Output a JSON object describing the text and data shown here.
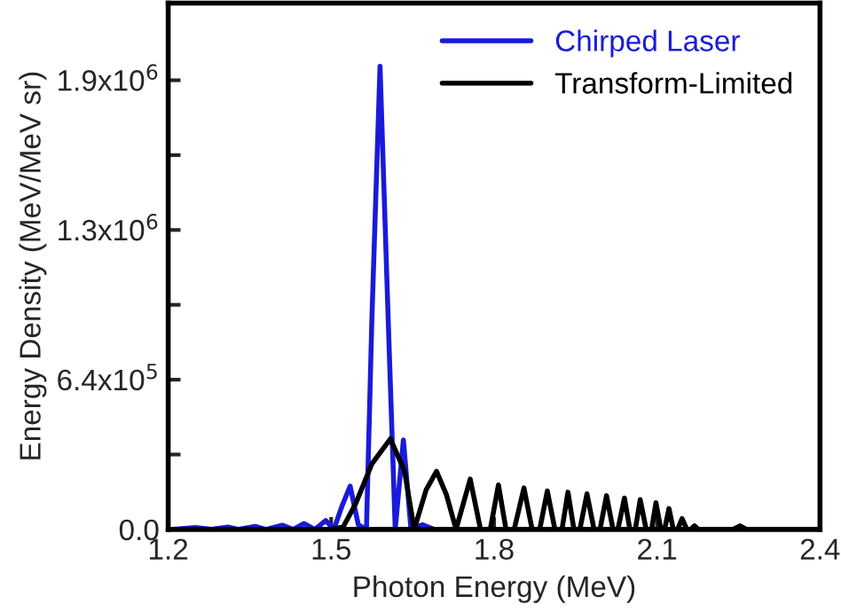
{
  "chart_data": {
    "type": "line",
    "xlabel": "Photon Energy (MeV)",
    "ylabel": "Energy Density (MeV/MeV sr)",
    "xlim": [
      1.2,
      2.4
    ],
    "xticks": [
      1.2,
      1.5,
      1.8,
      2.1,
      2.4
    ],
    "ylim": [
      0,
      2250000
    ],
    "yticks": [
      {
        "value": 0,
        "label": "0.0"
      },
      {
        "value": 320000,
        "label": null
      },
      {
        "value": 640000,
        "label": "6.4x10$^{5}$"
      },
      {
        "value": 960000,
        "label": null
      },
      {
        "value": 1280000,
        "label": "1.3x10$^{6}$"
      },
      {
        "value": 1600000,
        "label": null
      },
      {
        "value": 1920000,
        "label": "1.9x10$^{6}$"
      }
    ],
    "grid": false,
    "legend": "top right",
    "marker": "none",
    "line_style": "solid",
    "series": [
      {
        "name": "Chirped Laser",
        "color": "#1a1adb",
        "x": [
          1.21,
          1.25,
          1.28,
          1.31,
          1.33,
          1.36,
          1.38,
          1.41,
          1.43,
          1.45,
          1.47,
          1.49,
          1.505,
          1.52,
          1.535,
          1.55,
          1.565,
          1.575,
          1.59,
          1.605,
          1.618,
          1.633,
          1.647,
          1.668,
          1.69,
          1.72
        ],
        "values": [
          0,
          8000,
          0,
          10000,
          0,
          13000,
          0,
          18000,
          0,
          25000,
          0,
          38000,
          0,
          100000,
          185000,
          20000,
          0,
          900000,
          1980000,
          900000,
          0,
          382000,
          0,
          20000,
          0,
          0
        ]
      },
      {
        "name": "Transform-Limited",
        "color": "#000000",
        "x": [
          1.2,
          1.5,
          1.522,
          1.545,
          1.575,
          1.609,
          1.635,
          1.653,
          1.675,
          1.694,
          1.712,
          1.73,
          1.756,
          1.775,
          1.793,
          1.808,
          1.822,
          1.837,
          1.855,
          1.87,
          1.884,
          1.898,
          1.912,
          1.925,
          1.936,
          1.947,
          1.958,
          1.971,
          1.984,
          1.995,
          2.007,
          2.019,
          2.028,
          2.04,
          2.05,
          2.06,
          2.069,
          2.08,
          2.09,
          2.098,
          2.107,
          2.114,
          2.122,
          2.13,
          2.138,
          2.146,
          2.155,
          2.162,
          2.169,
          2.176,
          2.24,
          2.253,
          2.265,
          2.3
        ],
        "values": [
          0,
          0,
          10000,
          109000,
          280000,
          387000,
          250000,
          0,
          170000,
          248000,
          150000,
          0,
          215000,
          0,
          0,
          190000,
          0,
          0,
          177000,
          0,
          0,
          164000,
          0,
          0,
          159000,
          0,
          0,
          152000,
          0,
          0,
          144000,
          0,
          0,
          134000,
          0,
          0,
          127000,
          0,
          0,
          114000,
          0,
          0,
          89000,
          0,
          0,
          46000,
          0,
          0,
          15000,
          0,
          0,
          15000,
          0,
          0
        ]
      }
    ]
  }
}
